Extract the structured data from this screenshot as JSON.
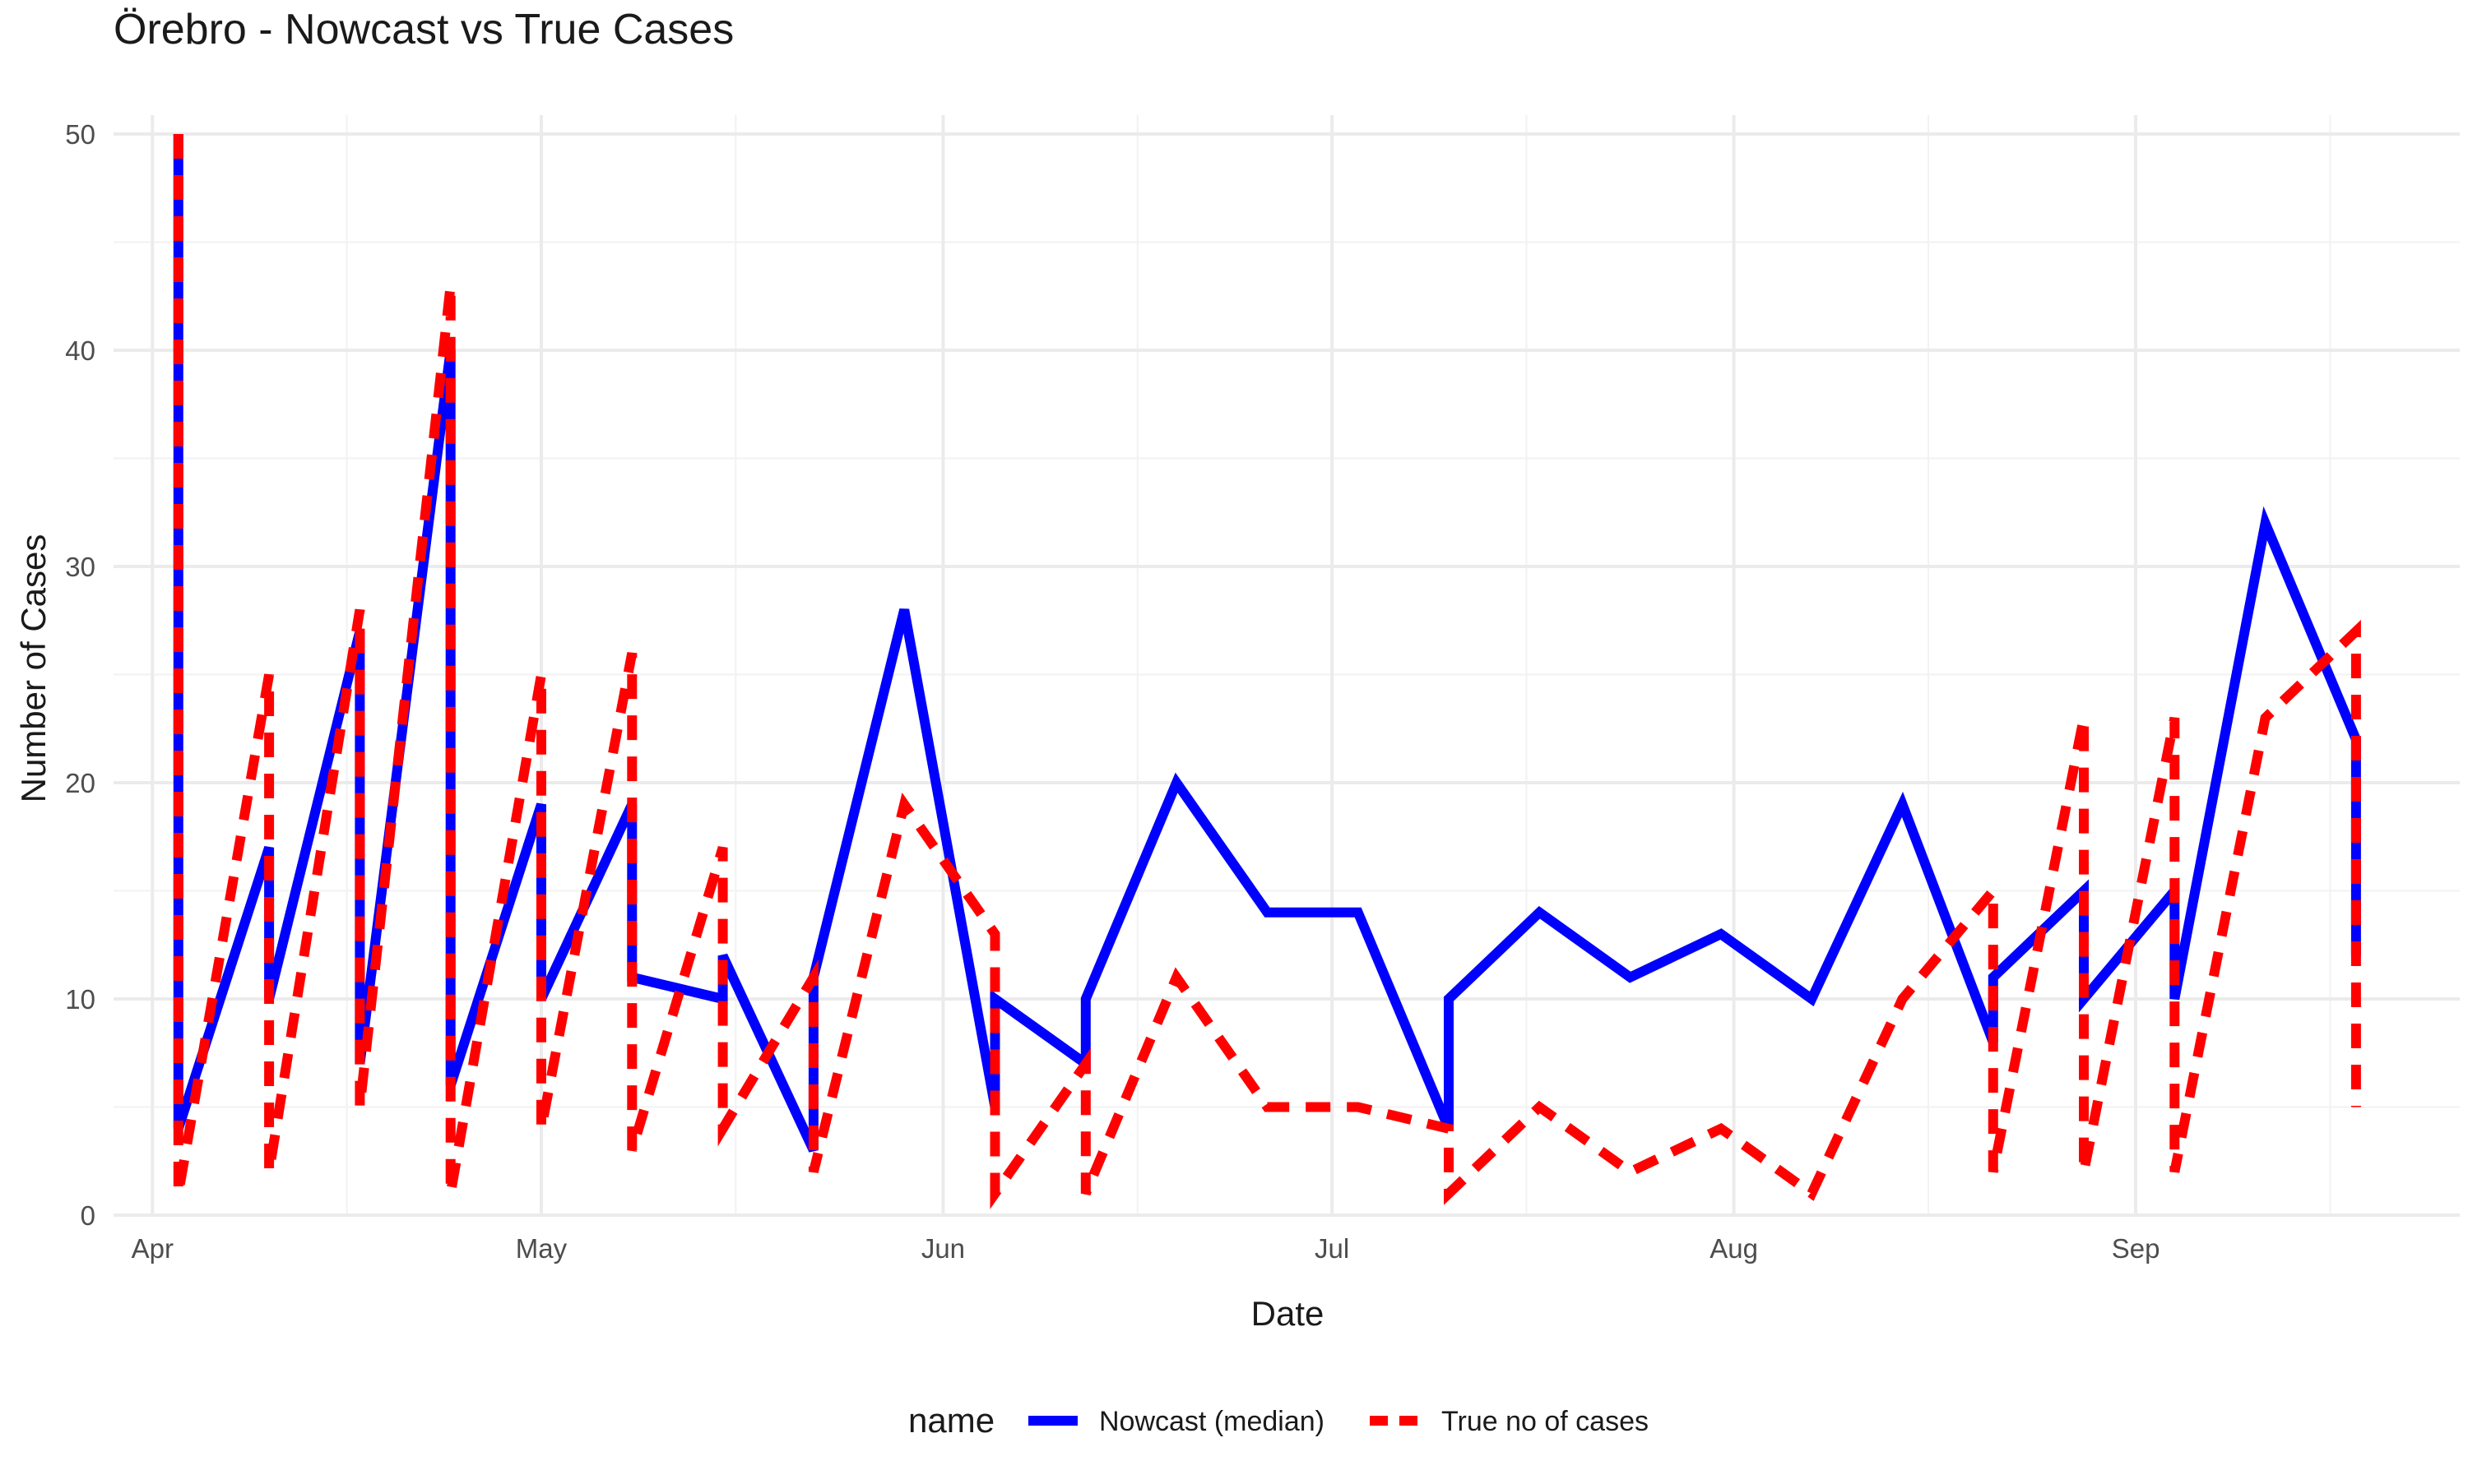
{
  "chart_data": {
    "type": "line",
    "title": "Örebro - Nowcast vs True Cases",
    "xlabel": "Date",
    "ylabel": "Number of Cases",
    "x_axis": "date",
    "xlim": [
      "2020-03-29",
      "2020-09-26"
    ],
    "ylim": [
      0,
      50
    ],
    "y_ticks": [
      0,
      10,
      20,
      30,
      40,
      50
    ],
    "x_tick_labels": [
      {
        "date": "2020-04-01",
        "label": "Apr"
      },
      {
        "date": "2020-05-01",
        "label": "May"
      },
      {
        "date": "2020-06-01",
        "label": "Jun"
      },
      {
        "date": "2020-07-01",
        "label": "Jul"
      },
      {
        "date": "2020-08-01",
        "label": "Aug"
      },
      {
        "date": "2020-09-01",
        "label": "Sep"
      }
    ],
    "x_minor_breaks": [
      "2020-04-16",
      "2020-05-16",
      "2020-06-16",
      "2020-07-16",
      "2020-08-16",
      "2020-09-16"
    ],
    "grid": true,
    "legend": {
      "title": "name",
      "position": "bottom"
    },
    "series": [
      {
        "name": "Nowcast (median)",
        "color": "#0000ff",
        "linetype": "solid",
        "points": [
          [
            "2020-04-03",
            50
          ],
          [
            "2020-04-03",
            4
          ],
          [
            "2020-04-10",
            17
          ],
          [
            "2020-04-10",
            10
          ],
          [
            "2020-04-17",
            27
          ],
          [
            "2020-04-17",
            7
          ],
          [
            "2020-04-24",
            40
          ],
          [
            "2020-04-24",
            6
          ],
          [
            "2020-05-01",
            19
          ],
          [
            "2020-05-01",
            10
          ],
          [
            "2020-05-08",
            19
          ],
          [
            "2020-05-08",
            11
          ],
          [
            "2020-05-15",
            10
          ],
          [
            "2020-05-15",
            12
          ],
          [
            "2020-05-22",
            3
          ],
          [
            "2020-05-22",
            11
          ],
          [
            "2020-05-29",
            28
          ],
          [
            "2020-06-05",
            5
          ],
          [
            "2020-06-05",
            10
          ],
          [
            "2020-06-12",
            7
          ],
          [
            "2020-06-12",
            10
          ],
          [
            "2020-06-19",
            20
          ],
          [
            "2020-06-26",
            14
          ],
          [
            "2020-07-03",
            14
          ],
          [
            "2020-07-10",
            4
          ],
          [
            "2020-07-10",
            10
          ],
          [
            "2020-07-17",
            14
          ],
          [
            "2020-07-24",
            11
          ],
          [
            "2020-07-31",
            13
          ],
          [
            "2020-08-07",
            10
          ],
          [
            "2020-08-14",
            19
          ],
          [
            "2020-08-21",
            8
          ],
          [
            "2020-08-21",
            11
          ],
          [
            "2020-08-28",
            15
          ],
          [
            "2020-08-28",
            10
          ],
          [
            "2020-09-04",
            15
          ],
          [
            "2020-09-04",
            10
          ],
          [
            "2020-09-11",
            32
          ],
          [
            "2020-09-18",
            22
          ],
          [
            "2020-09-18",
            12
          ]
        ]
      },
      {
        "name": "True no of cases",
        "color": "#ff0000",
        "linetype": "dashed",
        "points": [
          [
            "2020-04-03",
            50
          ],
          [
            "2020-04-03",
            1
          ],
          [
            "2020-04-10",
            25
          ],
          [
            "2020-04-10",
            2
          ],
          [
            "2020-04-17",
            28
          ],
          [
            "2020-04-17",
            5
          ],
          [
            "2020-04-24",
            43
          ],
          [
            "2020-04-24",
            1
          ],
          [
            "2020-05-01",
            25
          ],
          [
            "2020-05-01",
            4
          ],
          [
            "2020-05-08",
            26
          ],
          [
            "2020-05-08",
            3
          ],
          [
            "2020-05-15",
            17
          ],
          [
            "2020-05-15",
            4
          ],
          [
            "2020-05-22",
            11
          ],
          [
            "2020-05-22",
            2
          ],
          [
            "2020-05-29",
            19
          ],
          [
            "2020-06-05",
            13
          ],
          [
            "2020-06-05",
            1
          ],
          [
            "2020-06-12",
            7
          ],
          [
            "2020-06-12",
            1
          ],
          [
            "2020-06-19",
            11
          ],
          [
            "2020-06-26",
            5
          ],
          [
            "2020-07-03",
            5
          ],
          [
            "2020-07-10",
            4
          ],
          [
            "2020-07-10",
            1
          ],
          [
            "2020-07-17",
            5
          ],
          [
            "2020-07-24",
            2
          ],
          [
            "2020-07-31",
            4
          ],
          [
            "2020-08-07",
            1
          ],
          [
            "2020-08-14",
            10
          ],
          [
            "2020-08-21",
            15
          ],
          [
            "2020-08-21",
            2
          ],
          [
            "2020-08-28",
            23
          ],
          [
            "2020-08-28",
            2
          ],
          [
            "2020-09-04",
            23
          ],
          [
            "2020-09-04",
            2
          ],
          [
            "2020-09-11",
            23
          ],
          [
            "2020-09-18",
            27
          ],
          [
            "2020-09-18",
            5
          ]
        ]
      }
    ]
  }
}
